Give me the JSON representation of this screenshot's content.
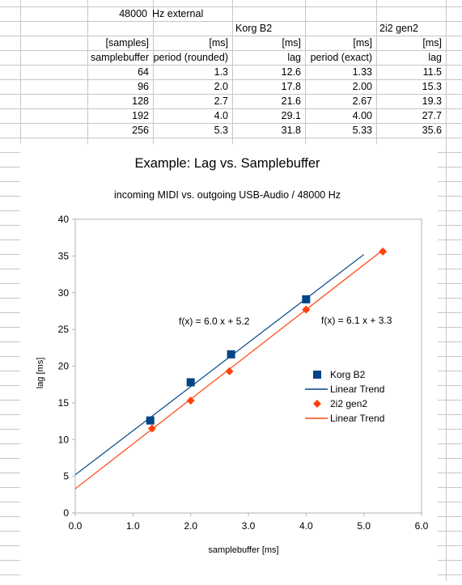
{
  "sheet": {
    "header_row1": {
      "rate": "48000",
      "mode": "Hz external"
    },
    "header_row2": {
      "group_a": "Korg B2",
      "group_b": "2i2 gen2"
    },
    "header_row3": {
      "c1": "[samples]",
      "c2": "[ms]",
      "c3": "[ms]",
      "c4": "[ms]",
      "c5": "[ms]"
    },
    "header_row4": {
      "c1": "samplebuffer",
      "c2": "period (rounded)",
      "c3": "lag",
      "c4": "period (exact)",
      "c5": "lag"
    },
    "rows": [
      [
        "64",
        "1.3",
        "12.6",
        "1.33",
        "11.5"
      ],
      [
        "96",
        "2.0",
        "17.8",
        "2.00",
        "15.3"
      ],
      [
        "128",
        "2.7",
        "21.6",
        "2.67",
        "19.3"
      ],
      [
        "192",
        "4.0",
        "29.1",
        "4.00",
        "27.7"
      ],
      [
        "256",
        "5.3",
        "31.8",
        "5.33",
        "35.6"
      ]
    ]
  },
  "chart_data": {
    "type": "scatter",
    "title": "Example: Lag vs. Samplebuffer",
    "subtitle": "incoming MIDI vs. outgoing USB-Audio / 48000 Hz",
    "xlabel": "samplebuffer [ms]",
    "ylabel": "lag [ms]",
    "xlim": [
      0,
      6
    ],
    "ylim": [
      0,
      40
    ],
    "xticks": [
      "0.0",
      "1.0",
      "2.0",
      "3.0",
      "4.0",
      "5.0",
      "6.0"
    ],
    "yticks": [
      "0",
      "5",
      "10",
      "15",
      "20",
      "25",
      "30",
      "35",
      "40"
    ],
    "grid": false,
    "legend_position": "right",
    "series": [
      {
        "name": "Korg B2",
        "marker": "square",
        "color": "#004586",
        "x": [
          1.3,
          2.0,
          2.7,
          4.0
        ],
        "y": [
          12.6,
          17.8,
          21.6,
          29.1
        ],
        "trend": {
          "name": "Linear Trend",
          "slope": 6.0,
          "intercept": 5.2,
          "x_range": [
            0,
            5.0
          ],
          "equation": "f(x) = 6.0 x + 5.2"
        }
      },
      {
        "name": "2i2 gen2",
        "marker": "diamond",
        "color": "#ff420e",
        "x": [
          1.33,
          2.0,
          2.67,
          4.0,
          5.33
        ],
        "y": [
          11.5,
          15.3,
          19.3,
          27.7,
          35.6
        ],
        "trend": {
          "name": "Linear Trend",
          "slope": 6.1,
          "intercept": 3.3,
          "x_range": [
            0,
            5.33
          ],
          "equation": "f(x) = 6.1 x + 3.3"
        }
      }
    ]
  }
}
